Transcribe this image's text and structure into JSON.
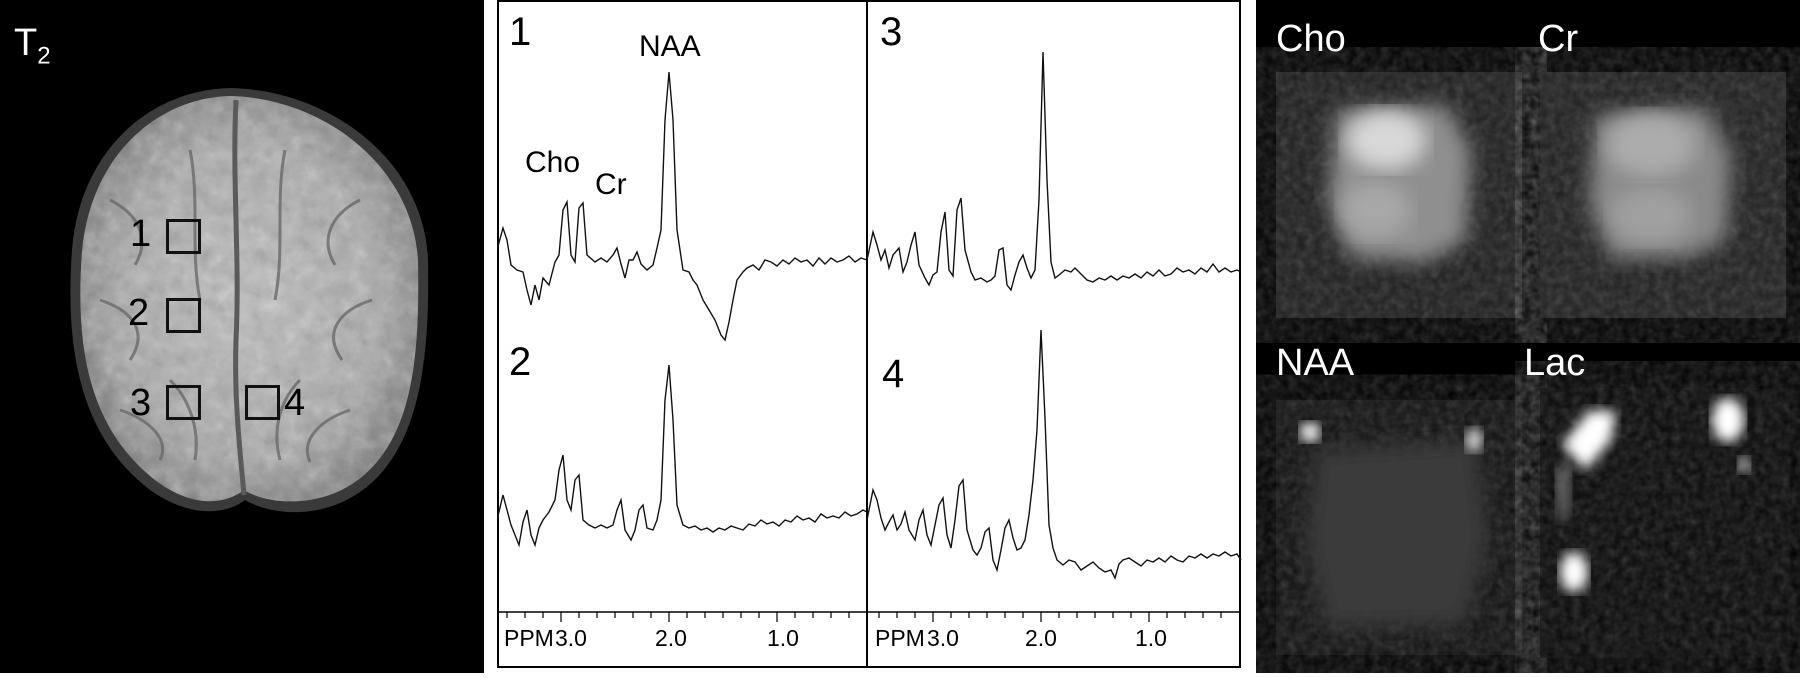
{
  "mri": {
    "title": "T",
    "title_sub": "2",
    "voxels": [
      {
        "label": "1"
      },
      {
        "label": "2"
      },
      {
        "label": "3"
      },
      {
        "label": "4"
      }
    ]
  },
  "spectra": {
    "panels": [
      {
        "label": "1"
      },
      {
        "label": "3"
      },
      {
        "label": "2"
      },
      {
        "label": "4"
      }
    ],
    "peaks": {
      "naa": "NAA",
      "cho": "Cho",
      "cr": "Cr"
    },
    "axis": {
      "unit": "PPM",
      "ticks": [
        "3.0",
        "2.0",
        "1.0"
      ]
    }
  },
  "maps": {
    "labels": [
      "Cho",
      "Cr",
      "NAA",
      "Lac"
    ]
  },
  "colors": {
    "background_dark": "#000000",
    "trace": "#111111",
    "frame": "#000000"
  }
}
